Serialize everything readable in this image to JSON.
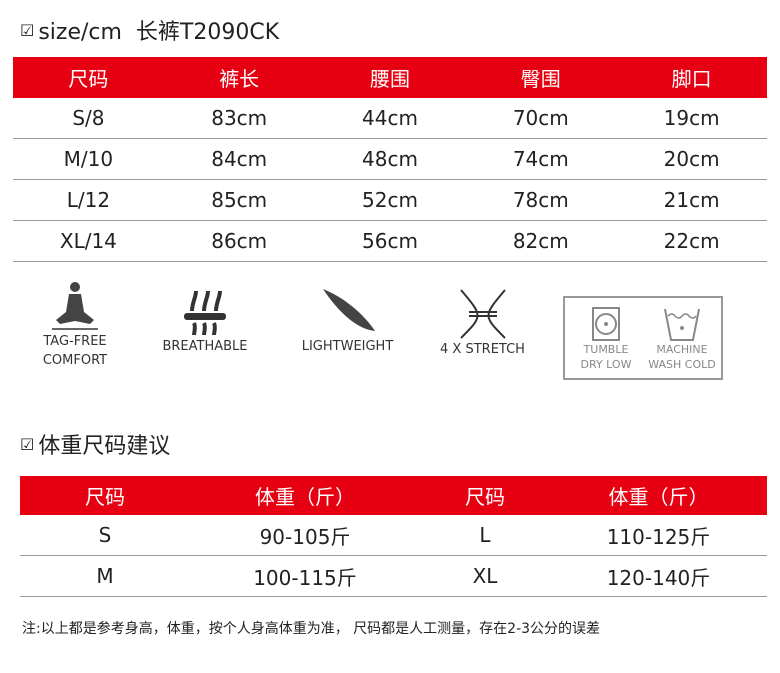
{
  "section1": {
    "title": "size/cm  长裤T2090CK"
  },
  "size_table": {
    "headers": [
      "尺码",
      "裤长",
      "腰围",
      "臀围",
      "脚口"
    ],
    "rows": [
      [
        "S/8",
        "83cm",
        "44cm",
        "70cm",
        "19cm"
      ],
      [
        "M/10",
        "84cm",
        "48cm",
        "74cm",
        "20cm"
      ],
      [
        "L/12",
        "85cm",
        "52cm",
        "78cm",
        "21cm"
      ],
      [
        "XL/14",
        "86cm",
        "56cm",
        "82cm",
        "22cm"
      ]
    ]
  },
  "features": [
    {
      "icon": "meditation-figure-icon",
      "line1": "TAG-FREE",
      "line2": "COMFORT"
    },
    {
      "icon": "breathable-arrows-icon",
      "line1": "BREATHABLE",
      "line2": ""
    },
    {
      "icon": "feather-icon",
      "line1": "LIGHTWEIGHT",
      "line2": ""
    },
    {
      "icon": "stretch-arrows-icon",
      "line1": "4 X STRETCH",
      "line2": ""
    }
  ],
  "care": [
    {
      "icon": "tumble-dry-icon",
      "line1": "TUMBLE",
      "line2": "DRY LOW"
    },
    {
      "icon": "machine-wash-icon",
      "line1": "MACHINE",
      "line2": "WASH COLD"
    }
  ],
  "section2": {
    "title": "体重尺码建议"
  },
  "weight_table": {
    "headers": [
      "尺码",
      "体重（斤）",
      "尺码",
      "体重（斤）"
    ],
    "rows": [
      [
        "S",
        "90-105斤",
        "L",
        "110-125斤"
      ],
      [
        "M",
        "100-115斤",
        "XL",
        "120-140斤"
      ]
    ]
  },
  "note": "注:以上都是参考身高，体重，按个人身高体重为准， 尺码都是人工测量，存在2-3公分的误差",
  "colors": {
    "header_red": "#e60012"
  }
}
